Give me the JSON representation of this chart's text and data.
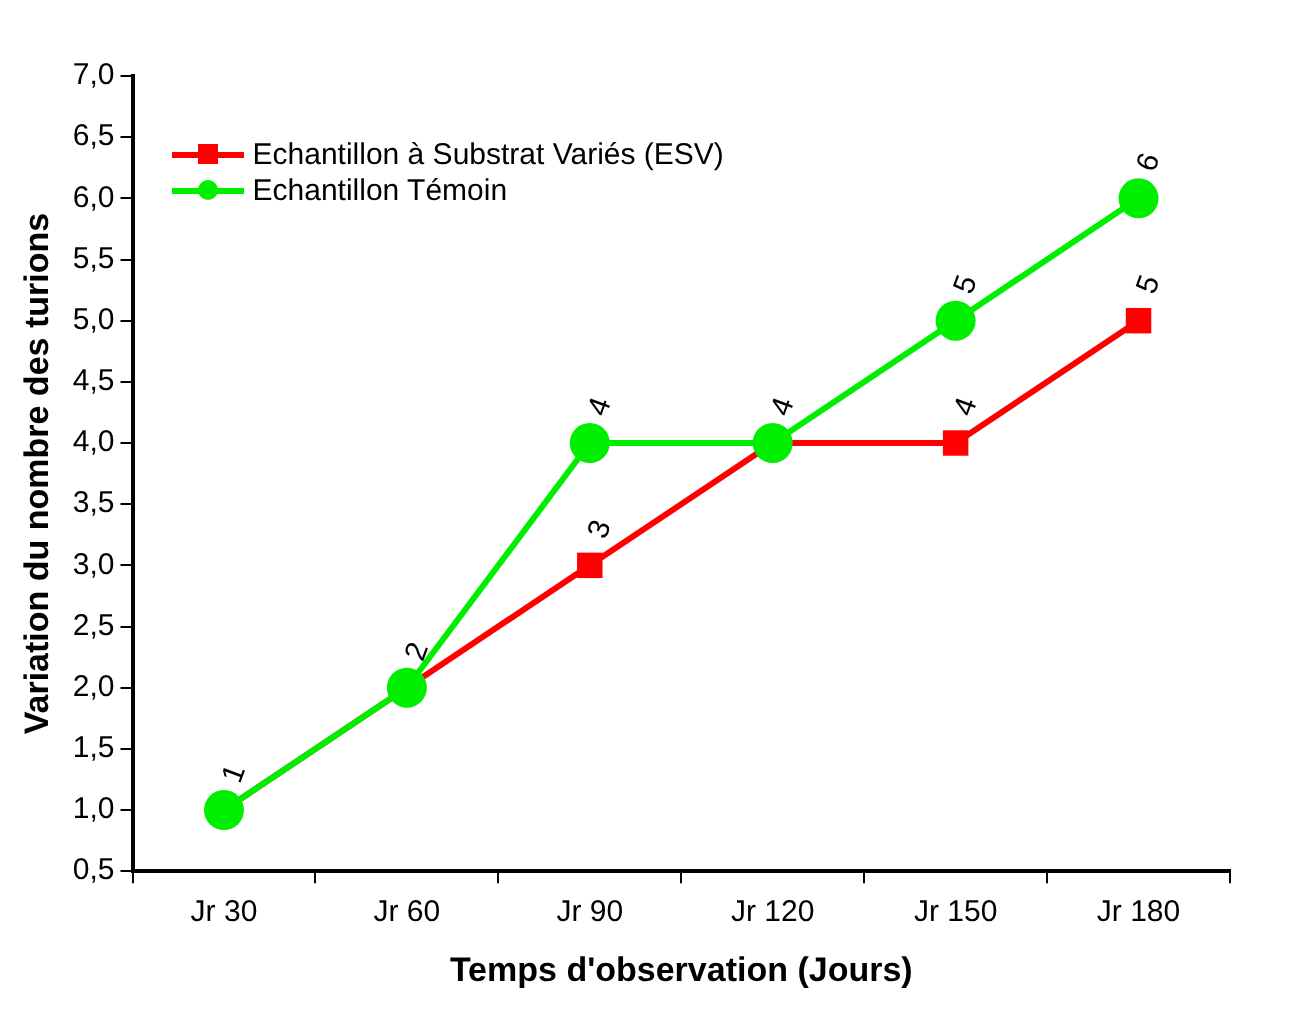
{
  "chart_data": {
    "type": "line",
    "xlabel": "Temps d'observation (Jours)",
    "ylabel": "Variation du nombre des turions",
    "categories": [
      "Jr 30",
      "Jr 60",
      "Jr 90",
      "Jr 120",
      "Jr 150",
      "Jr 180"
    ],
    "series": [
      {
        "name": "Echantillon à Substrat Variés (ESV)",
        "color": "#ff0000",
        "marker": "square",
        "values": [
          1,
          2,
          3,
          4,
          4,
          5
        ],
        "value_labels": [
          "1",
          "2",
          "3",
          "4",
          "4",
          "5"
        ]
      },
      {
        "name": "Echantillon Témoin",
        "color": "#00ee00",
        "marker": "circle",
        "values": [
          1,
          2,
          4,
          4,
          5,
          6
        ],
        "value_labels": [
          null,
          null,
          "4",
          null,
          "5",
          "6"
        ]
      }
    ],
    "ylim": [
      0.5,
      7.0
    ],
    "yticks": [
      {
        "value": 0.5,
        "label": "0,5"
      },
      {
        "value": 1,
        "label": "1,0"
      },
      {
        "value": 1.5,
        "label": "1,5"
      },
      {
        "value": 2,
        "label": "2,0"
      },
      {
        "value": 2.5,
        "label": "2,5"
      },
      {
        "value": 3,
        "label": "3,0"
      },
      {
        "value": 3.5,
        "label": "3,5"
      },
      {
        "value": 4,
        "label": "4,0"
      },
      {
        "value": 4.5,
        "label": "4,5"
      },
      {
        "value": 5,
        "label": "5,0"
      },
      {
        "value": 5.5,
        "label": "5,5"
      },
      {
        "value": 6,
        "label": "6,0"
      },
      {
        "value": 6.5,
        "label": "6,5"
      },
      {
        "value": 7,
        "label": "7,0"
      }
    ],
    "grid": false,
    "legend": "top left",
    "line_style": "solid"
  }
}
